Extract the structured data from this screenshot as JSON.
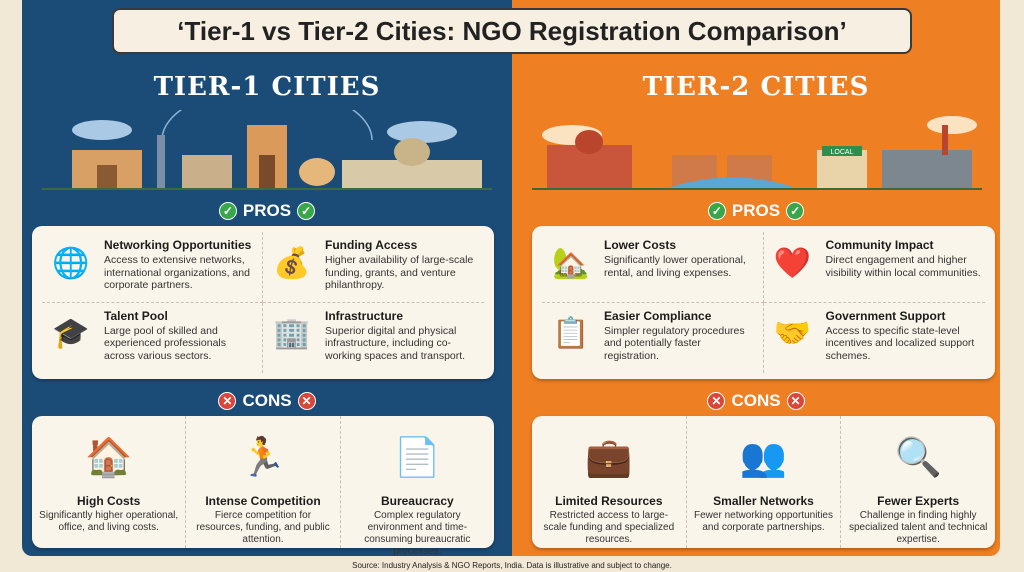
{
  "title": "‘Tier-1 vs Tier-2 Cities: NGO Registration Comparison’",
  "colors": {
    "tier1": "#1b4c78",
    "tier2": "#ee7f22",
    "background": "#f2e8d6"
  },
  "tier1": {
    "heading": "TIER-1 CITIES",
    "pros_label": "PROS",
    "cons_label": "CONS",
    "pros": [
      {
        "icon": "network-globe-icon",
        "title": "Networking Opportunities",
        "text": "Access to extensive networks, international organizations, and corporate partners."
      },
      {
        "icon": "coins-growth-icon",
        "title": "Funding Access",
        "text": "Higher availability of large-scale funding, grants, and venture philanthropy."
      },
      {
        "icon": "graduation-people-icon",
        "title": "Talent Pool",
        "text": "Large pool of skilled and experienced professionals across various sectors."
      },
      {
        "icon": "office-building-icon",
        "title": "Infrastructure",
        "text": "Superior digital and physical infrastructure, including co-working spaces and transport."
      }
    ],
    "cons": [
      {
        "icon": "rising-cost-house-icon",
        "title": "High Costs",
        "text": "Significantly higher operational, office, and living costs."
      },
      {
        "icon": "runners-race-icon",
        "title": "Intense Competition",
        "text": "Fierce competition for resources, funding, and public attention."
      },
      {
        "icon": "red-tape-documents-icon",
        "title": "Bureaucracy",
        "text": "Complex regulatory environment and time-consuming bureaucratic processes."
      }
    ]
  },
  "tier2": {
    "heading": "TIER-2 CITIES",
    "sign": "LOCAL",
    "pros_label": "PROS",
    "cons_label": "CONS",
    "pros": [
      {
        "icon": "coins-house-icon",
        "title": "Lower Costs",
        "text": "Significantly lower operational, rental, and living expenses."
      },
      {
        "icon": "heart-hands-icon",
        "title": "Community Impact",
        "text": "Direct engagement and higher visibility within local communities."
      },
      {
        "icon": "checklist-icon",
        "title": "Easier Compliance",
        "text": "Simpler regulatory procedures and potentially faster registration."
      },
      {
        "icon": "government-handshake-icon",
        "title": "Government Support",
        "text": "Access to specific state-level incentives and localized support schemes."
      }
    ],
    "cons": [
      {
        "icon": "briefcase-coin-icon",
        "title": "Limited Resources",
        "text": "Restricted access to large-scale funding and specialized resources."
      },
      {
        "icon": "small-network-icon",
        "title": "Smaller Networks",
        "text": "Fewer networking opportunities and corporate partnerships."
      },
      {
        "icon": "expert-search-icon",
        "title": "Fewer Experts",
        "text": "Challenge in finding highly specialized talent and technical expertise."
      }
    ]
  },
  "source": "Source: Industry Analysis & NGO Reports, India. Data is illustrative and subject to change."
}
